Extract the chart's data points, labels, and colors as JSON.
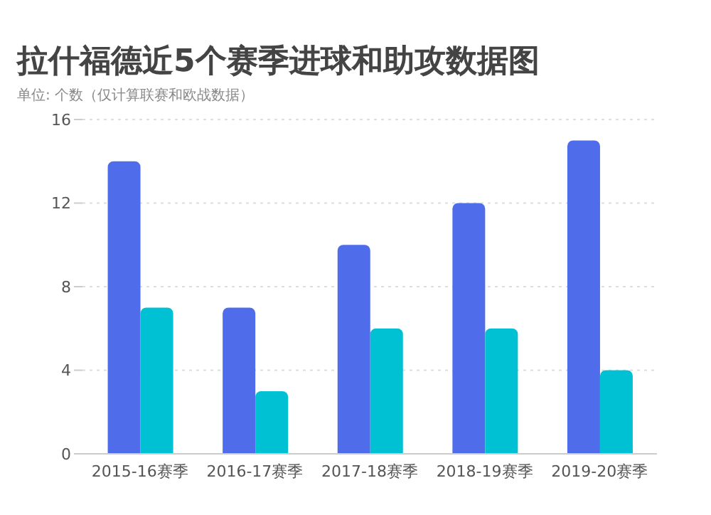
{
  "chart_data": {
    "type": "bar",
    "title": "拉什福德近5个赛季进球和助攻数据图",
    "subtitle": "单位: 个数（仅计算联赛和欧战数据）",
    "categories": [
      "2015-16赛季",
      "2016-17赛季",
      "2017-18赛季",
      "2018-19赛季",
      "2019-20赛季"
    ],
    "series": [
      {
        "color": "#4f6deb",
        "values": [
          14,
          7,
          10,
          12,
          15
        ]
      },
      {
        "color": "#00c1d4",
        "values": [
          7,
          3,
          6,
          6,
          4
        ]
      }
    ],
    "ylim": [
      0,
      16
    ],
    "yticks": [
      0,
      4,
      8,
      12,
      16
    ],
    "grid": "y",
    "legend": false
  }
}
